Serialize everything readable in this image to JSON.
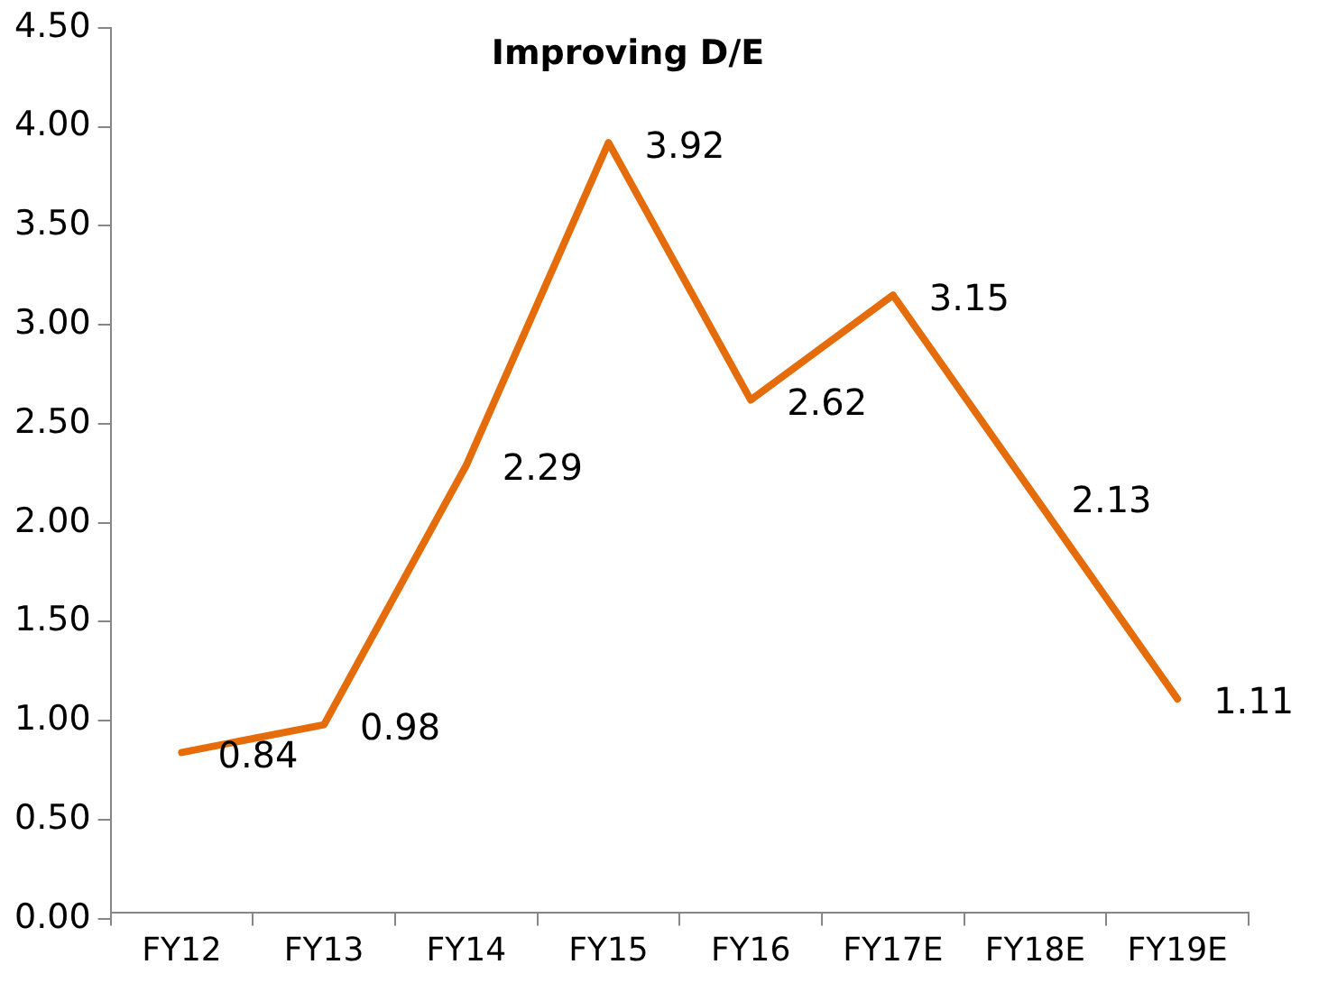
{
  "chart_data": {
    "type": "line",
    "title": "Improving D/E",
    "categories": [
      "FY12",
      "FY13",
      "FY14",
      "FY15",
      "FY16",
      "FY17E",
      "FY18E",
      "FY19E"
    ],
    "series": [
      {
        "color": "#e46c0a",
        "values": [
          0.84,
          0.98,
          2.29,
          3.92,
          2.62,
          3.15,
          2.13,
          1.11
        ]
      }
    ],
    "ylim": [
      0,
      4.5
    ],
    "yticks": [
      {
        "value": 0,
        "label": "0.00"
      },
      {
        "value": 0.5,
        "label": "0.50"
      },
      {
        "value": 1,
        "label": "1.00"
      },
      {
        "value": 1.5,
        "label": "1.50"
      },
      {
        "value": 2,
        "label": "2.00"
      },
      {
        "value": 2.5,
        "label": "2.50"
      },
      {
        "value": 3,
        "label": "3.00"
      },
      {
        "value": 3.5,
        "label": "3.50"
      },
      {
        "value": 4,
        "label": "4.00"
      },
      {
        "value": 4.5,
        "label": "4.50"
      }
    ],
    "grid": false,
    "legend": false,
    "marker": "none",
    "line_style": "solid",
    "data_labels": true
  }
}
